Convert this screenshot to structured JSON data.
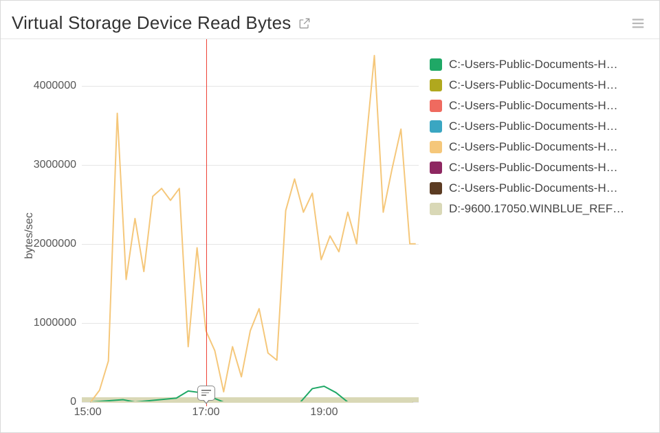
{
  "header": {
    "title": "Virtual Storage Device Read Bytes"
  },
  "chart": {
    "type": "line",
    "ylabel": "bytes/sec",
    "background_color": "#ffffff",
    "grid_color": "#e5e5e5",
    "axis_color": "#cccccc",
    "tick_font_size": 16,
    "tick_color": "#555555",
    "x": {
      "min": 14.9,
      "max": 20.6,
      "ticks": [
        15,
        17,
        19
      ],
      "tick_labels": [
        "15:00",
        "17:00",
        "19:00"
      ]
    },
    "y": {
      "min": 0,
      "max": 4500000,
      "ticks": [
        0,
        1000000,
        2000000,
        3000000,
        4000000
      ],
      "tick_labels": [
        "0",
        "1000000",
        "2000000",
        "3000000",
        "4000000"
      ]
    },
    "marker": {
      "x": 17.0,
      "color": "#ef4136",
      "annotation": true
    },
    "ground_band": {
      "color": "#d9d8b6",
      "thickness_ratio": 0.013
    },
    "line_width": 2,
    "series": [
      {
        "label": "C:-Users-Public-Documents-H…",
        "color": "#1fa866",
        "x": [
          15.05,
          15.6,
          15.8,
          16.5,
          16.7,
          16.9,
          17.1,
          17.3,
          18.6,
          18.8,
          19.0,
          19.2,
          19.4,
          20.5
        ],
        "y": [
          0,
          30000,
          0,
          50000,
          140000,
          120000,
          60000,
          0,
          0,
          170000,
          200000,
          120000,
          0,
          0
        ]
      },
      {
        "label": "C:-Users-Public-Documents-H…",
        "color": "#b0a81e",
        "x": [
          15.05,
          20.5
        ],
        "y": [
          0,
          0
        ]
      },
      {
        "label": "C:-Users-Public-Documents-H…",
        "color": "#ef6a5f",
        "x": [
          15.05,
          20.5
        ],
        "y": [
          0,
          0
        ]
      },
      {
        "label": "C:-Users-Public-Documents-H…",
        "color": "#3aa6c2",
        "x": [
          15.05,
          20.5
        ],
        "y": [
          0,
          0
        ]
      },
      {
        "label": "C:-Users-Public-Documents-H…",
        "color": "#f5c77a",
        "x": [
          15.05,
          15.2,
          15.35,
          15.5,
          15.65,
          15.8,
          15.95,
          16.1,
          16.25,
          16.4,
          16.55,
          16.7,
          16.85,
          17.0,
          17.15,
          17.3,
          17.45,
          17.6,
          17.75,
          17.9,
          18.05,
          18.2,
          18.35,
          18.5,
          18.65,
          18.8,
          18.95,
          19.1,
          19.25,
          19.4,
          19.55,
          19.7,
          19.85,
          20.0,
          20.15,
          20.3,
          20.45,
          20.55
        ],
        "y": [
          0,
          150000,
          520000,
          3650000,
          1550000,
          2320000,
          1650000,
          2600000,
          2700000,
          2550000,
          2700000,
          700000,
          1950000,
          900000,
          650000,
          130000,
          700000,
          320000,
          900000,
          1180000,
          620000,
          530000,
          2420000,
          2820000,
          2400000,
          2640000,
          1800000,
          2100000,
          1900000,
          2400000,
          2000000,
          3200000,
          4380000,
          2400000,
          2950000,
          3450000,
          2000000,
          2000000
        ]
      },
      {
        "label": "C:-Users-Public-Documents-H…",
        "color": "#8e2761",
        "x": [
          15.05,
          20.5
        ],
        "y": [
          0,
          0
        ]
      },
      {
        "label": "C:-Users-Public-Documents-H…",
        "color": "#5b3b22",
        "x": [
          15.05,
          20.5
        ],
        "y": [
          0,
          0
        ]
      },
      {
        "label": "D:-9600.17050.WINBLUE_REF…",
        "color": "#d9d8b6",
        "x": [
          15.05,
          20.5
        ],
        "y": [
          0,
          0
        ]
      }
    ]
  }
}
